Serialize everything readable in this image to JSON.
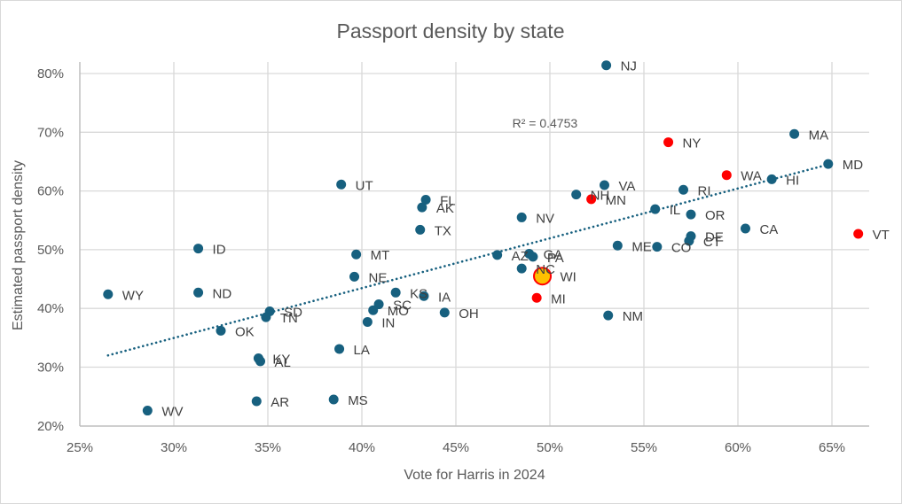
{
  "chart_data": {
    "type": "scatter",
    "title": "Passport density by state",
    "xlabel": "Vote for Harris in 2024",
    "ylabel": "Estimated passport density",
    "xlim": [
      25,
      67
    ],
    "ylim": [
      20,
      80
    ],
    "x_ticks": [
      "25%",
      "30%",
      "35%",
      "40%",
      "45%",
      "50%",
      "55%",
      "60%",
      "65%"
    ],
    "x_tick_values": [
      25,
      30,
      35,
      40,
      45,
      50,
      55,
      60,
      65
    ],
    "y_ticks": [
      "20%",
      "30%",
      "40%",
      "50%",
      "60%",
      "70%",
      "80%"
    ],
    "y_tick_values": [
      20,
      30,
      40,
      50,
      60,
      70,
      80
    ],
    "grid": true,
    "legend": "none",
    "colors": {
      "default": "#17607f",
      "highlight": "#ff0000",
      "featured_fill": "#ffc000",
      "featured_stroke": "#ff0000",
      "trendline": "#17607f"
    },
    "trendline": {
      "type": "linear",
      "style": "dotted",
      "x_range": [
        26.5,
        64.8
      ],
      "y_start": 32.0,
      "y_end": 64.5,
      "r_squared_label": "R² = 0.4753",
      "r_squared_label_x": 48,
      "r_squared_label_y": 70.8
    },
    "points": [
      {
        "state": "NJ",
        "x": 53.0,
        "y": 81.4,
        "color": "default"
      },
      {
        "state": "MA",
        "x": 63.0,
        "y": 69.7,
        "color": "default"
      },
      {
        "state": "NY",
        "x": 56.3,
        "y": 68.3,
        "color": "highlight"
      },
      {
        "state": "MD",
        "x": 64.8,
        "y": 64.6,
        "color": "default"
      },
      {
        "state": "WA",
        "x": 59.4,
        "y": 62.7,
        "color": "highlight"
      },
      {
        "state": "HI",
        "x": 61.8,
        "y": 62.0,
        "color": "default"
      },
      {
        "state": "UT",
        "x": 38.9,
        "y": 61.1,
        "color": "default"
      },
      {
        "state": "VA",
        "x": 52.9,
        "y": 61.0,
        "color": "default"
      },
      {
        "state": "RI",
        "x": 57.1,
        "y": 60.2,
        "color": "default"
      },
      {
        "state": "NH",
        "x": 51.4,
        "y": 59.4,
        "color": "default"
      },
      {
        "state": "MN",
        "x": 52.2,
        "y": 58.6,
        "color": "highlight"
      },
      {
        "state": "FL",
        "x": 43.4,
        "y": 58.5,
        "color": "default"
      },
      {
        "state": "AK",
        "x": 43.2,
        "y": 57.2,
        "color": "default"
      },
      {
        "state": "IL",
        "x": 55.6,
        "y": 56.9,
        "color": "default"
      },
      {
        "state": "OR",
        "x": 57.5,
        "y": 56.0,
        "color": "default"
      },
      {
        "state": "NV",
        "x": 48.5,
        "y": 55.5,
        "color": "default"
      },
      {
        "state": "CA",
        "x": 60.4,
        "y": 53.6,
        "color": "default"
      },
      {
        "state": "TX",
        "x": 43.1,
        "y": 53.4,
        "color": "default"
      },
      {
        "state": "VT",
        "x": 66.4,
        "y": 52.7,
        "color": "highlight"
      },
      {
        "state": "DE",
        "x": 57.5,
        "y": 52.3,
        "color": "default"
      },
      {
        "state": "CT",
        "x": 57.4,
        "y": 51.5,
        "color": "default"
      },
      {
        "state": "ME",
        "x": 53.6,
        "y": 50.7,
        "color": "default"
      },
      {
        "state": "CO",
        "x": 55.7,
        "y": 50.5,
        "color": "default"
      },
      {
        "state": "ID",
        "x": 31.3,
        "y": 50.2,
        "color": "default"
      },
      {
        "state": "MT",
        "x": 39.7,
        "y": 49.2,
        "color": "default"
      },
      {
        "state": "AZ",
        "x": 47.2,
        "y": 49.1,
        "color": "default"
      },
      {
        "state": "GA",
        "x": 48.9,
        "y": 49.3,
        "color": "default"
      },
      {
        "state": "PA",
        "x": 49.1,
        "y": 48.8,
        "color": "default"
      },
      {
        "state": "NC",
        "x": 48.5,
        "y": 46.8,
        "color": "default"
      },
      {
        "state": "WI",
        "x": 49.6,
        "y": 45.5,
        "color": "featured"
      },
      {
        "state": "NE",
        "x": 39.6,
        "y": 45.4,
        "color": "default"
      },
      {
        "state": "ND",
        "x": 31.3,
        "y": 42.7,
        "color": "default"
      },
      {
        "state": "WY",
        "x": 26.5,
        "y": 42.4,
        "color": "default"
      },
      {
        "state": "KS",
        "x": 41.8,
        "y": 42.7,
        "color": "default"
      },
      {
        "state": "IA",
        "x": 43.3,
        "y": 42.1,
        "color": "default"
      },
      {
        "state": "MI",
        "x": 49.3,
        "y": 41.8,
        "color": "highlight"
      },
      {
        "state": "SC",
        "x": 40.9,
        "y": 40.7,
        "color": "default"
      },
      {
        "state": "MO",
        "x": 40.6,
        "y": 39.7,
        "color": "default"
      },
      {
        "state": "SD",
        "x": 35.1,
        "y": 39.5,
        "color": "default"
      },
      {
        "state": "TN",
        "x": 34.9,
        "y": 38.5,
        "color": "default"
      },
      {
        "state": "NM",
        "x": 53.1,
        "y": 38.8,
        "color": "default"
      },
      {
        "state": "OH",
        "x": 44.4,
        "y": 39.3,
        "color": "default"
      },
      {
        "state": "IN",
        "x": 40.3,
        "y": 37.7,
        "color": "default"
      },
      {
        "state": "OK",
        "x": 32.5,
        "y": 36.2,
        "color": "default"
      },
      {
        "state": "LA",
        "x": 38.8,
        "y": 33.1,
        "color": "default"
      },
      {
        "state": "KY",
        "x": 34.5,
        "y": 31.5,
        "color": "default"
      },
      {
        "state": "AL",
        "x": 34.6,
        "y": 31.0,
        "color": "default"
      },
      {
        "state": "MS",
        "x": 38.5,
        "y": 24.5,
        "color": "default"
      },
      {
        "state": "AR",
        "x": 34.4,
        "y": 24.2,
        "color": "default"
      },
      {
        "state": "WV",
        "x": 28.6,
        "y": 22.6,
        "color": "default"
      }
    ]
  }
}
